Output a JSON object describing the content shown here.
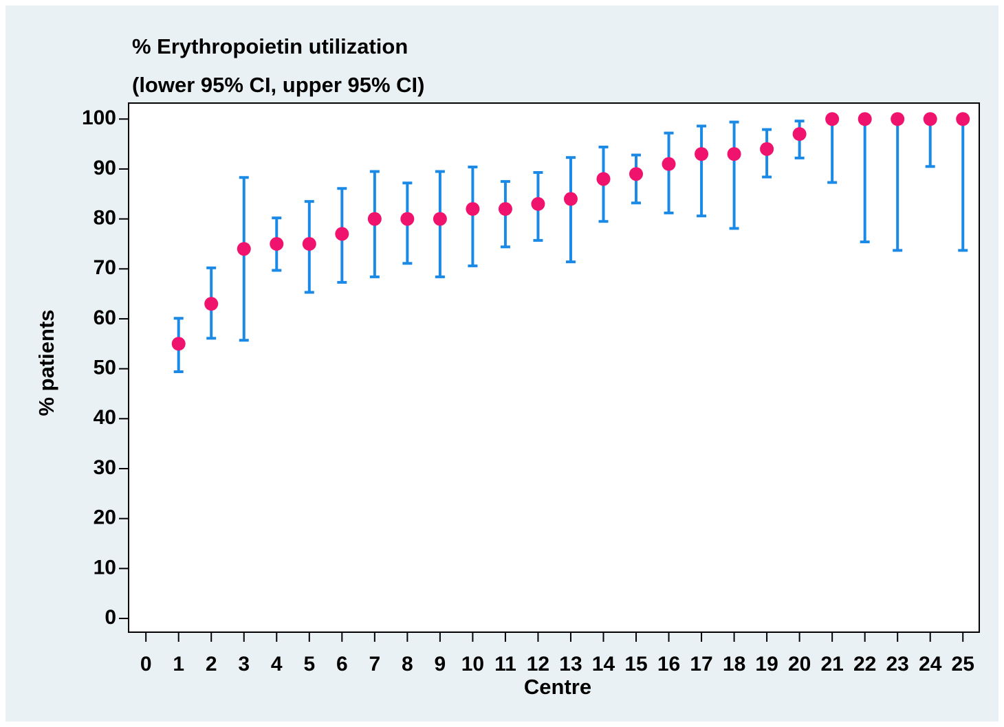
{
  "chart_data": {
    "type": "errorbar",
    "title": "% Erythropoietin utilization",
    "subtitle": "(lower 95% CI, upper 95% CI)",
    "x_label": "Centre",
    "y_label": "% patients",
    "x": [
      1,
      2,
      3,
      4,
      5,
      6,
      7,
      8,
      9,
      10,
      11,
      12,
      13,
      14,
      15,
      16,
      17,
      18,
      19,
      20,
      21,
      22,
      23,
      24,
      25
    ],
    "values": [
      55,
      63,
      74,
      75,
      75,
      77,
      80,
      80,
      80,
      82,
      82,
      83,
      84,
      88,
      89,
      91,
      93,
      93,
      94,
      97,
      100,
      100,
      100,
      100,
      100
    ],
    "lower": [
      49.4,
      56.1,
      55.7,
      69.7,
      65.3,
      67.3,
      68.4,
      71.1,
      68.4,
      70.6,
      74.4,
      75.7,
      71.4,
      79.5,
      83.2,
      81.2,
      80.6,
      78.1,
      88.4,
      92.2,
      87.3,
      75.4,
      73.7,
      90.5,
      73.7
    ],
    "upper": [
      60.1,
      70.2,
      88.3,
      80.2,
      83.5,
      86.1,
      89.5,
      87.2,
      89.5,
      90.4,
      87.5,
      89.3,
      92.3,
      94.4,
      92.8,
      97.2,
      98.6,
      99.4,
      97.9,
      99.6,
      100,
      100,
      100,
      100,
      100
    ],
    "point_color": "#f0136e",
    "bar_color": "#1a8ae6",
    "xlim": [
      -0.53,
      25.5
    ],
    "ylim": [
      -2.75,
      103.2
    ],
    "xticks": [
      0,
      1,
      2,
      3,
      4,
      5,
      6,
      7,
      8,
      9,
      10,
      11,
      12,
      13,
      14,
      15,
      16,
      17,
      18,
      19,
      20,
      21,
      22,
      23,
      24,
      25
    ],
    "yticks": [
      0,
      10,
      20,
      30,
      40,
      50,
      60,
      70,
      80,
      90,
      100
    ]
  }
}
